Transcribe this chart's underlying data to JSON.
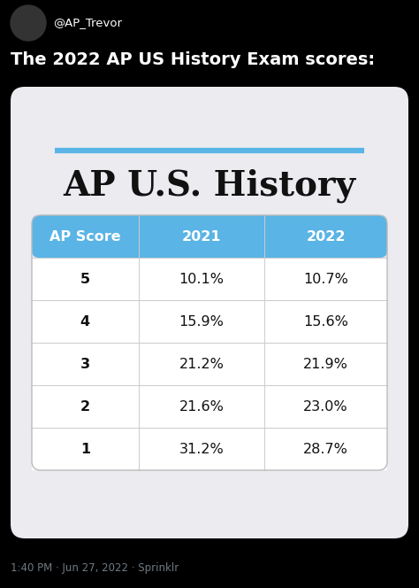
{
  "tweet_header": "@AP_Trevor",
  "tweet_text": "The 2022 AP US History Exam scores:",
  "accent_line_color": "#5ab4e5",
  "header_bg_color": "#5ab4e5",
  "header_text_color": "#ffffff",
  "card_bg_color": "#ebebf0",
  "outer_bg_color": "#000000",
  "row_line_color": "#cccccc",
  "col_line_color": "#cccccc",
  "columns": [
    "AP Score",
    "2021",
    "2022"
  ],
  "rows": [
    [
      "5",
      "10.1%",
      "10.7%"
    ],
    [
      "4",
      "15.9%",
      "15.6%"
    ],
    [
      "3",
      "21.2%",
      "21.9%"
    ],
    [
      "2",
      "21.6%",
      "23.0%"
    ],
    [
      "1",
      "31.2%",
      "28.7%"
    ]
  ],
  "footer_text": "1:40 PM · Jun 27, 2022 · Sprinklr",
  "tweet_text_color": "#ffffff",
  "footer_text_color": "#6e7a82",
  "fig_w": 4.74,
  "fig_h": 6.64,
  "dpi": 100
}
